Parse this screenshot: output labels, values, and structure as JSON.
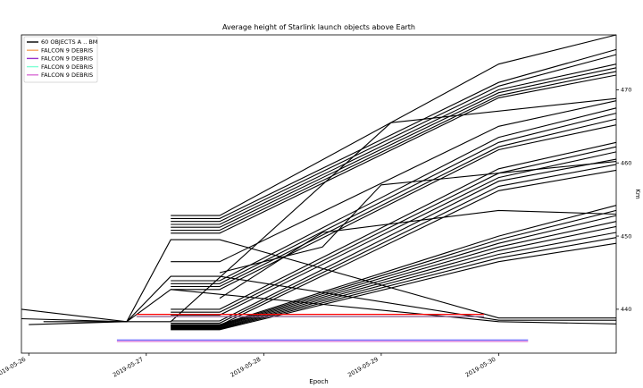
{
  "chart_data": {
    "type": "line",
    "title": "Average height of Starlink launch objects above Earth",
    "xlabel": "Epoch",
    "ylabel": "Km",
    "x_axis_type": "date",
    "xlim": [
      "2019-05-25T22:30",
      "2019-05-31T00:00"
    ],
    "ylim": [
      434,
      477.5
    ],
    "y_axis_position": "right",
    "x_ticks": [
      "2019-05-26",
      "2019-05-27",
      "2019-05-28",
      "2019-05-29",
      "2019-05-30"
    ],
    "y_ticks": [
      440,
      450,
      460,
      470
    ],
    "grid": false,
    "legend": {
      "position": "top-left",
      "entries": [
        {
          "label": "60 OBJECTS A .. BM",
          "color": "#000000"
        },
        {
          "label": "FALCON 9 DEBRIS",
          "color": "#f4a460"
        },
        {
          "label": "FALCON 9 DEBRIS",
          "color": "#9932cc"
        },
        {
          "label": "FALCON 9 DEBRIS",
          "color": "#7fffd4"
        },
        {
          "label": "FALCON 9 DEBRIS",
          "color": "#da70d6"
        }
      ]
    },
    "series": [
      {
        "color": "#000000",
        "points": [
          [
            "2019-05-26T03:00",
            438.3
          ],
          [
            "2019-05-26T20:00",
            438.3
          ],
          [
            "2019-05-27T05:00",
            442.7
          ],
          [
            "2019-05-30T00:00",
            438.3
          ],
          [
            "2019-05-31T00:00",
            438.0
          ]
        ]
      },
      {
        "color": "#000000",
        "points": [
          [
            "2019-05-25T22:30",
            438.7
          ],
          [
            "2019-05-26T20:00",
            438.3
          ],
          [
            "2019-05-27T05:00",
            449.5
          ],
          [
            "2019-05-27T15:00",
            449.5
          ],
          [
            "2019-05-30T00:00",
            438.8
          ],
          [
            "2019-05-31T00:00",
            438.8
          ]
        ]
      },
      {
        "color": "#000000",
        "points": [
          [
            "2019-05-25T22:30",
            440.0
          ],
          [
            "2019-05-26T20:00",
            438.3
          ],
          [
            "2019-05-27T05:00",
            444.5
          ],
          [
            "2019-05-27T15:00",
            444.5
          ],
          [
            "2019-05-30T00:00",
            438.5
          ],
          [
            "2019-05-31T00:00",
            438.5
          ]
        ]
      },
      {
        "color": "#000000",
        "points": [
          [
            "2019-05-27T05:00",
            452.8
          ],
          [
            "2019-05-27T15:00",
            452.8
          ],
          [
            "2019-05-30T00:00",
            473.5
          ],
          [
            "2019-05-31T00:00",
            477.5
          ]
        ]
      },
      {
        "color": "#000000",
        "points": [
          [
            "2019-05-27T05:00",
            452.4
          ],
          [
            "2019-05-27T15:00",
            452.4
          ],
          [
            "2019-05-30T00:00",
            471.0
          ],
          [
            "2019-05-31T00:00",
            475.5
          ]
        ]
      },
      {
        "color": "#000000",
        "points": [
          [
            "2019-05-27T05:00",
            452.0
          ],
          [
            "2019-05-27T15:00",
            452.0
          ],
          [
            "2019-05-30T00:00",
            470.5
          ],
          [
            "2019-05-31T00:00",
            474.8
          ]
        ]
      },
      {
        "color": "#000000",
        "points": [
          [
            "2019-05-27T05:00",
            451.6
          ],
          [
            "2019-05-27T15:00",
            451.6
          ],
          [
            "2019-05-30T00:00",
            470.0
          ],
          [
            "2019-05-31T00:00",
            473.5
          ]
        ]
      },
      {
        "color": "#000000",
        "points": [
          [
            "2019-05-27T05:00",
            451.2
          ],
          [
            "2019-05-27T15:00",
            451.2
          ],
          [
            "2019-05-30T00:00",
            469.6
          ],
          [
            "2019-05-31T00:00",
            473.0
          ]
        ]
      },
      {
        "color": "#000000",
        "points": [
          [
            "2019-05-27T05:00",
            450.8
          ],
          [
            "2019-05-27T15:00",
            450.8
          ],
          [
            "2019-05-30T00:00",
            469.2
          ],
          [
            "2019-05-31T00:00",
            472.5
          ]
        ]
      },
      {
        "color": "#000000",
        "points": [
          [
            "2019-05-27T05:00",
            450.4
          ],
          [
            "2019-05-27T15:00",
            450.4
          ],
          [
            "2019-05-30T00:00",
            468.9
          ],
          [
            "2019-05-31T00:00",
            472.0
          ]
        ]
      },
      {
        "color": "#000000",
        "points": [
          [
            "2019-05-27T05:00",
            446.5
          ],
          [
            "2019-05-27T15:00",
            446.5
          ],
          [
            "2019-05-30T00:00",
            465.0
          ],
          [
            "2019-05-31T00:00",
            468.5
          ]
        ]
      },
      {
        "color": "#000000",
        "points": [
          [
            "2019-05-27T05:00",
            443.9
          ],
          [
            "2019-05-27T15:00",
            443.9
          ],
          [
            "2019-05-30T00:00",
            463.5
          ],
          [
            "2019-05-31T00:00",
            467.5
          ]
        ]
      },
      {
        "color": "#000000",
        "points": [
          [
            "2019-05-27T05:00",
            443.5
          ],
          [
            "2019-05-27T15:00",
            443.5
          ],
          [
            "2019-05-30T00:00",
            462.8
          ],
          [
            "2019-05-31T00:00",
            466.8
          ]
        ]
      },
      {
        "color": "#000000",
        "points": [
          [
            "2019-05-27T05:00",
            443.1
          ],
          [
            "2019-05-27T15:00",
            443.1
          ],
          [
            "2019-05-30T00:00",
            462.2
          ],
          [
            "2019-05-31T00:00",
            466.0
          ]
        ]
      },
      {
        "color": "#000000",
        "points": [
          [
            "2019-05-27T05:00",
            442.7
          ],
          [
            "2019-05-27T15:00",
            442.7
          ],
          [
            "2019-05-30T00:00",
            461.8
          ],
          [
            "2019-05-31T00:00",
            465.2
          ]
        ]
      },
      {
        "color": "#000000",
        "points": [
          [
            "2019-05-27T05:00",
            440.0
          ],
          [
            "2019-05-27T15:00",
            440.0
          ],
          [
            "2019-05-30T00:00",
            459.2
          ],
          [
            "2019-05-31T00:00",
            462.8
          ]
        ]
      },
      {
        "color": "#000000",
        "points": [
          [
            "2019-05-27T05:00",
            439.6
          ],
          [
            "2019-05-27T15:00",
            439.6
          ],
          [
            "2019-05-30T00:00",
            458.6
          ],
          [
            "2019-05-31T00:00",
            462.2
          ]
        ]
      },
      {
        "color": "#000000",
        "points": [
          [
            "2019-05-27T05:00",
            439.2
          ],
          [
            "2019-05-27T15:00",
            439.2
          ],
          [
            "2019-05-30T00:00",
            458.0
          ],
          [
            "2019-05-31T00:00",
            461.5
          ]
        ]
      },
      {
        "color": "#000000",
        "points": [
          [
            "2019-05-27T05:00",
            438.4
          ],
          [
            "2019-05-27T15:00",
            438.4
          ],
          [
            "2019-05-30T00:00",
            457.5
          ],
          [
            "2019-05-31T00:00",
            460.5
          ]
        ]
      },
      {
        "color": "#000000",
        "points": [
          [
            "2019-05-27T05:00",
            438.1
          ],
          [
            "2019-05-27T15:00",
            438.1
          ],
          [
            "2019-05-30T00:00",
            456.8
          ],
          [
            "2019-05-31T00:00",
            459.8
          ]
        ]
      },
      {
        "color": "#000000",
        "points": [
          [
            "2019-05-27T05:00",
            437.8
          ],
          [
            "2019-05-27T15:00",
            437.8
          ],
          [
            "2019-05-30T00:00",
            456.2
          ],
          [
            "2019-05-31T00:00",
            459.0
          ]
        ]
      },
      {
        "color": "#000000",
        "points": [
          [
            "2019-05-27T05:00",
            437.9
          ],
          [
            "2019-05-27T15:00",
            437.9
          ],
          [
            "2019-05-30T00:00",
            450.0
          ],
          [
            "2019-05-31T00:00",
            454.2
          ]
        ]
      },
      {
        "color": "#000000",
        "points": [
          [
            "2019-05-27T05:00",
            437.8
          ],
          [
            "2019-05-27T15:00",
            437.8
          ],
          [
            "2019-05-30T00:00",
            449.5
          ],
          [
            "2019-05-31T00:00",
            453.5
          ]
        ]
      },
      {
        "color": "#000000",
        "points": [
          [
            "2019-05-27T05:00",
            437.7
          ],
          [
            "2019-05-27T15:00",
            437.7
          ],
          [
            "2019-05-30T00:00",
            449.0
          ],
          [
            "2019-05-31T00:00",
            452.8
          ]
        ]
      },
      {
        "color": "#000000",
        "points": [
          [
            "2019-05-27T05:00",
            437.6
          ],
          [
            "2019-05-27T15:00",
            437.6
          ],
          [
            "2019-05-30T00:00",
            448.5
          ],
          [
            "2019-05-31T00:00",
            452.0
          ]
        ]
      },
      {
        "color": "#000000",
        "points": [
          [
            "2019-05-27T05:00",
            437.5
          ],
          [
            "2019-05-27T15:00",
            437.5
          ],
          [
            "2019-05-30T00:00",
            448.0
          ],
          [
            "2019-05-31T00:00",
            451.3
          ]
        ]
      },
      {
        "color": "#000000",
        "points": [
          [
            "2019-05-27T05:00",
            437.4
          ],
          [
            "2019-05-27T15:00",
            437.4
          ],
          [
            "2019-05-30T00:00",
            447.5
          ],
          [
            "2019-05-31T00:00",
            450.5
          ]
        ]
      },
      {
        "color": "#000000",
        "points": [
          [
            "2019-05-27T05:00",
            437.3
          ],
          [
            "2019-05-27T15:00",
            437.3
          ],
          [
            "2019-05-30T00:00",
            447.0
          ],
          [
            "2019-05-31T00:00",
            449.8
          ]
        ]
      },
      {
        "color": "#000000",
        "points": [
          [
            "2019-05-27T05:00",
            437.2
          ],
          [
            "2019-05-27T15:00",
            437.2
          ],
          [
            "2019-05-30T00:00",
            446.5
          ],
          [
            "2019-05-31T00:00",
            449.0
          ]
        ]
      },
      {
        "color": "#000000",
        "points": [
          [
            "2019-05-26T00:00",
            437.9
          ],
          [
            "2019-05-26T20:00",
            438.3
          ],
          [
            "2019-05-27T05:00",
            438.3
          ],
          [
            "2019-05-29T02:00",
            465.5
          ],
          [
            "2019-05-31T00:00",
            468.8
          ]
        ]
      },
      {
        "color": "#000000",
        "points": [
          [
            "2019-05-27T15:00",
            445.0
          ],
          [
            "2019-05-28T12:00",
            448.5
          ],
          [
            "2019-05-29T00:00",
            457.0
          ],
          [
            "2019-05-31T00:00",
            460.2
          ]
        ]
      },
      {
        "color": "#000000",
        "points": [
          [
            "2019-05-27T15:00",
            441.5
          ],
          [
            "2019-05-28T12:00",
            450.5
          ],
          [
            "2019-05-30T00:00",
            453.5
          ],
          [
            "2019-05-31T00:00",
            453.0
          ]
        ]
      },
      {
        "color": "#ff0000",
        "points": [
          [
            "2019-05-26T22:00",
            439.3
          ],
          [
            "2019-05-29T21:00",
            439.3
          ]
        ]
      },
      {
        "color": "#8b5a8b",
        "points": [
          [
            "2019-05-26T22:00",
            439.0
          ],
          [
            "2019-05-29T21:00",
            439.0
          ]
        ]
      },
      {
        "color": "#7b7bff",
        "points": [
          [
            "2019-05-26T18:00",
            435.8
          ],
          [
            "2019-05-30T06:00",
            435.8
          ]
        ]
      },
      {
        "color": "#da70d6",
        "points": [
          [
            "2019-05-26T18:00",
            435.6
          ],
          [
            "2019-05-30T06:00",
            435.6
          ]
        ]
      }
    ]
  }
}
